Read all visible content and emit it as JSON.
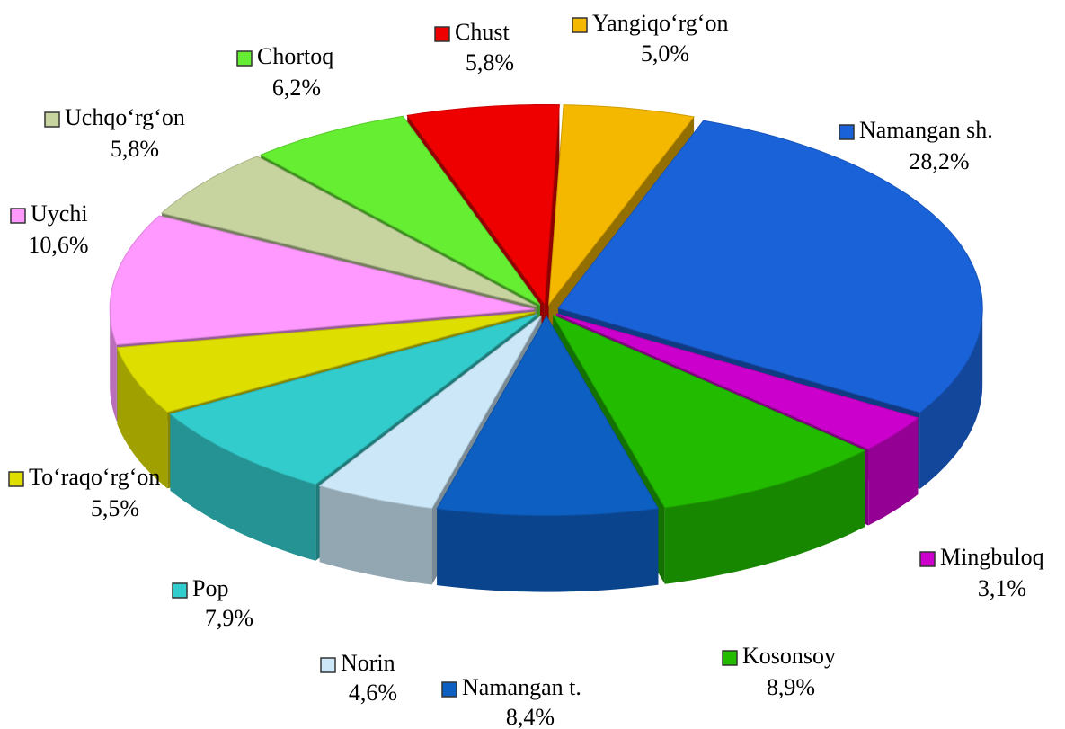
{
  "chart_data": {
    "type": "pie",
    "categories": [
      "Yangiqo‘rg‘on",
      "Namangan sh.",
      "Mingbuloq",
      "Kosonsoy",
      "Namangan t.",
      "Norin",
      "Pop",
      "To‘raqo‘rg‘on",
      "Uychi",
      "Uchqo‘rg‘on",
      "Chortoq",
      "Chust"
    ],
    "values": [
      5.0,
      28.2,
      3.1,
      8.9,
      8.4,
      4.6,
      7.9,
      5.5,
      10.6,
      5.8,
      6.2,
      5.8
    ],
    "value_labels": [
      "5,0%",
      "28,2%",
      "3,1%",
      "8,9%",
      "8,4%",
      "4,6%",
      "7,9%",
      "5,5%",
      "10,6%",
      "5,8%",
      "6,2%",
      "5,8%"
    ],
    "colors": [
      "#f5b800",
      "#1a62d8",
      "#cc00cc",
      "#22bb00",
      "#0e5fc2",
      "#cce8f8",
      "#33cccc",
      "#dede00",
      "#ff99ff",
      "#c8d4a0",
      "#66ee33",
      "#ee0000"
    ]
  }
}
